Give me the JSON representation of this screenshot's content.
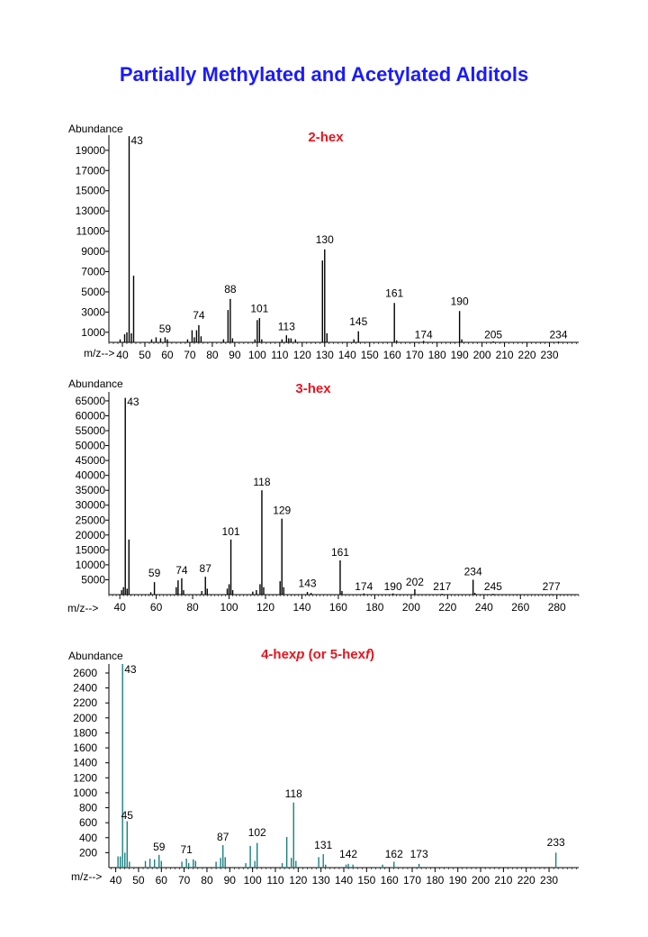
{
  "title": "Partially Methylated and Acetylated Alditols",
  "chart_data": [
    {
      "type": "bar",
      "title": "2-hex",
      "ylabel": "Abundance",
      "xlabel": "m/z-->",
      "color": "#000000",
      "xlim": [
        34,
        243
      ],
      "ylim": [
        0,
        20500
      ],
      "xticks": [
        40,
        50,
        60,
        70,
        80,
        90,
        100,
        110,
        120,
        130,
        140,
        150,
        160,
        170,
        180,
        190,
        200,
        210,
        220,
        230
      ],
      "yticks": [
        1000,
        3000,
        5000,
        7000,
        9000,
        11000,
        13000,
        15000,
        17000,
        19000
      ],
      "peaks": [
        {
          "x": 39,
          "y": 300
        },
        {
          "x": 41,
          "y": 800
        },
        {
          "x": 42,
          "y": 1000
        },
        {
          "x": 43,
          "y": 20400
        },
        {
          "x": 44,
          "y": 900
        },
        {
          "x": 45,
          "y": 6600
        },
        {
          "x": 53,
          "y": 300
        },
        {
          "x": 55,
          "y": 500
        },
        {
          "x": 57,
          "y": 400
        },
        {
          "x": 59,
          "y": 500
        },
        {
          "x": 60,
          "y": 300
        },
        {
          "x": 69,
          "y": 300
        },
        {
          "x": 71,
          "y": 1200
        },
        {
          "x": 72,
          "y": 500
        },
        {
          "x": 73,
          "y": 1200
        },
        {
          "x": 74,
          "y": 1700
        },
        {
          "x": 75,
          "y": 600
        },
        {
          "x": 85,
          "y": 300
        },
        {
          "x": 87,
          "y": 3200
        },
        {
          "x": 88,
          "y": 4300
        },
        {
          "x": 89,
          "y": 400
        },
        {
          "x": 99,
          "y": 300
        },
        {
          "x": 100,
          "y": 2200
        },
        {
          "x": 101,
          "y": 2400
        },
        {
          "x": 102,
          "y": 300
        },
        {
          "x": 111,
          "y": 300
        },
        {
          "x": 113,
          "y": 700
        },
        {
          "x": 114,
          "y": 400
        },
        {
          "x": 115,
          "y": 400
        },
        {
          "x": 117,
          "y": 300
        },
        {
          "x": 129,
          "y": 8100
        },
        {
          "x": 130,
          "y": 9200
        },
        {
          "x": 131,
          "y": 900
        },
        {
          "x": 143,
          "y": 300
        },
        {
          "x": 145,
          "y": 1100
        },
        {
          "x": 161,
          "y": 3900
        },
        {
          "x": 162,
          "y": 200
        },
        {
          "x": 174,
          "y": 150
        },
        {
          "x": 190,
          "y": 3100
        },
        {
          "x": 191,
          "y": 300
        },
        {
          "x": 205,
          "y": 100
        },
        {
          "x": 234,
          "y": 80
        }
      ],
      "labels": [
        "43",
        "59",
        "74",
        "88",
        "101",
        "113",
        "130",
        "145",
        "161",
        "174",
        "190",
        "205",
        "234"
      ],
      "label_positions": [
        {
          "x": 43,
          "y": 19600,
          "side": "right"
        },
        {
          "x": 59,
          "y": 1000
        },
        {
          "x": 74,
          "y": 2300
        },
        {
          "x": 88,
          "y": 4900
        },
        {
          "x": 101,
          "y": 3000
        },
        {
          "x": 113,
          "y": 1200
        },
        {
          "x": 130,
          "y": 9800
        },
        {
          "x": 145,
          "y": 1700
        },
        {
          "x": 161,
          "y": 4500
        },
        {
          "x": 174,
          "y": 400
        },
        {
          "x": 190,
          "y": 3700
        },
        {
          "x": 205,
          "y": 400
        },
        {
          "x": 234,
          "y": 400
        }
      ]
    },
    {
      "type": "bar",
      "title": "3-hex",
      "ylabel": "Abundance",
      "xlabel": "m/z-->",
      "color": "#000000",
      "xlim": [
        34,
        292
      ],
      "ylim": [
        0,
        68000
      ],
      "xticks": [
        40,
        60,
        80,
        100,
        120,
        140,
        160,
        180,
        200,
        220,
        240,
        260,
        280
      ],
      "yticks": [
        5000,
        10000,
        15000,
        20000,
        25000,
        30000,
        35000,
        40000,
        45000,
        50000,
        55000,
        60000,
        65000
      ],
      "peaks": [
        {
          "x": 41,
          "y": 1500
        },
        {
          "x": 42,
          "y": 2500
        },
        {
          "x": 43,
          "y": 66000
        },
        {
          "x": 44,
          "y": 2000
        },
        {
          "x": 45,
          "y": 18500
        },
        {
          "x": 57,
          "y": 800
        },
        {
          "x": 59,
          "y": 4200
        },
        {
          "x": 71,
          "y": 2500
        },
        {
          "x": 72,
          "y": 4800
        },
        {
          "x": 74,
          "y": 5500
        },
        {
          "x": 75,
          "y": 1500
        },
        {
          "x": 85,
          "y": 1200
        },
        {
          "x": 87,
          "y": 6000
        },
        {
          "x": 88,
          "y": 2000
        },
        {
          "x": 99,
          "y": 2000
        },
        {
          "x": 100,
          "y": 3500
        },
        {
          "x": 101,
          "y": 18500
        },
        {
          "x": 102,
          "y": 1500
        },
        {
          "x": 113,
          "y": 1000
        },
        {
          "x": 115,
          "y": 1500
        },
        {
          "x": 117,
          "y": 3500
        },
        {
          "x": 118,
          "y": 35000
        },
        {
          "x": 119,
          "y": 2500
        },
        {
          "x": 128,
          "y": 4500
        },
        {
          "x": 129,
          "y": 25500
        },
        {
          "x": 130,
          "y": 2500
        },
        {
          "x": 143,
          "y": 900
        },
        {
          "x": 145,
          "y": 600
        },
        {
          "x": 161,
          "y": 11500
        },
        {
          "x": 162,
          "y": 1200
        },
        {
          "x": 174,
          "y": 400
        },
        {
          "x": 190,
          "y": 400
        },
        {
          "x": 202,
          "y": 1800
        },
        {
          "x": 217,
          "y": 300
        },
        {
          "x": 234,
          "y": 5000
        },
        {
          "x": 235,
          "y": 600
        },
        {
          "x": 245,
          "y": 300
        },
        {
          "x": 277,
          "y": 200
        }
      ],
      "labels": [
        "43",
        "59",
        "74",
        "87",
        "101",
        "118",
        "129",
        "143",
        "161",
        "174",
        "190",
        "202",
        "217",
        "234",
        "245",
        "277"
      ],
      "label_positions": [
        {
          "x": 43,
          "y": 63500,
          "side": "right"
        },
        {
          "x": 59,
          "y": 6000
        },
        {
          "x": 74,
          "y": 7000
        },
        {
          "x": 87,
          "y": 7500
        },
        {
          "x": 101,
          "y": 20000
        },
        {
          "x": 118,
          "y": 36500
        },
        {
          "x": 129,
          "y": 27000
        },
        {
          "x": 143,
          "y": 2500
        },
        {
          "x": 161,
          "y": 13000
        },
        {
          "x": 174,
          "y": 1500
        },
        {
          "x": 190,
          "y": 1500
        },
        {
          "x": 202,
          "y": 3000
        },
        {
          "x": 217,
          "y": 1500
        },
        {
          "x": 234,
          "y": 6500
        },
        {
          "x": 245,
          "y": 1500
        },
        {
          "x": 277,
          "y": 1500
        }
      ]
    },
    {
      "type": "bar",
      "title": "4-hexp (or 5-hexf)",
      "title_parts": [
        "4-hex",
        "p",
        " (or 5-hex",
        "f",
        ")"
      ],
      "ylabel": "Abundance",
      "xlabel": "m/z-->",
      "color": "#1a7f80",
      "xlim": [
        37,
        243
      ],
      "ylim": [
        0,
        2720
      ],
      "xticks": [
        40,
        50,
        60,
        70,
        80,
        90,
        100,
        110,
        120,
        130,
        140,
        150,
        160,
        170,
        180,
        190,
        200,
        210,
        220,
        230
      ],
      "yticks": [
        200,
        400,
        600,
        800,
        1000,
        1200,
        1400,
        1600,
        1800,
        2000,
        2200,
        2400,
        2600
      ],
      "peaks": [
        {
          "x": 41,
          "y": 150
        },
        {
          "x": 42,
          "y": 150
        },
        {
          "x": 43,
          "y": 2720
        },
        {
          "x": 44,
          "y": 200
        },
        {
          "x": 45,
          "y": 620
        },
        {
          "x": 46,
          "y": 80
        },
        {
          "x": 53,
          "y": 90
        },
        {
          "x": 55,
          "y": 120
        },
        {
          "x": 57,
          "y": 110
        },
        {
          "x": 59,
          "y": 170
        },
        {
          "x": 60,
          "y": 90
        },
        {
          "x": 69,
          "y": 80
        },
        {
          "x": 71,
          "y": 120
        },
        {
          "x": 72,
          "y": 60
        },
        {
          "x": 74,
          "y": 110
        },
        {
          "x": 75,
          "y": 90
        },
        {
          "x": 84,
          "y": 80
        },
        {
          "x": 86,
          "y": 130
        },
        {
          "x": 87,
          "y": 300
        },
        {
          "x": 88,
          "y": 140
        },
        {
          "x": 97,
          "y": 60
        },
        {
          "x": 99,
          "y": 290
        },
        {
          "x": 101,
          "y": 90
        },
        {
          "x": 102,
          "y": 330
        },
        {
          "x": 113,
          "y": 60
        },
        {
          "x": 115,
          "y": 410
        },
        {
          "x": 117,
          "y": 130
        },
        {
          "x": 118,
          "y": 870
        },
        {
          "x": 119,
          "y": 90
        },
        {
          "x": 129,
          "y": 140
        },
        {
          "x": 131,
          "y": 180
        },
        {
          "x": 132,
          "y": 40
        },
        {
          "x": 141,
          "y": 40
        },
        {
          "x": 142,
          "y": 50
        },
        {
          "x": 144,
          "y": 40
        },
        {
          "x": 157,
          "y": 40
        },
        {
          "x": 162,
          "y": 80
        },
        {
          "x": 173,
          "y": 50
        },
        {
          "x": 233,
          "y": 200
        }
      ],
      "labels": [
        "43",
        "45",
        "59",
        "71",
        "87",
        "102",
        "118",
        "131",
        "142",
        "162",
        "173",
        "233"
      ],
      "label_positions": [
        {
          "x": 43,
          "y": 2600,
          "side": "right"
        },
        {
          "x": 45,
          "y": 650
        },
        {
          "x": 59,
          "y": 230
        },
        {
          "x": 71,
          "y": 190
        },
        {
          "x": 87,
          "y": 360
        },
        {
          "x": 102,
          "y": 420
        },
        {
          "x": 118,
          "y": 940
        },
        {
          "x": 131,
          "y": 250
        },
        {
          "x": 142,
          "y": 130
        },
        {
          "x": 162,
          "y": 130
        },
        {
          "x": 173,
          "y": 130
        },
        {
          "x": 233,
          "y": 290
        }
      ]
    }
  ]
}
